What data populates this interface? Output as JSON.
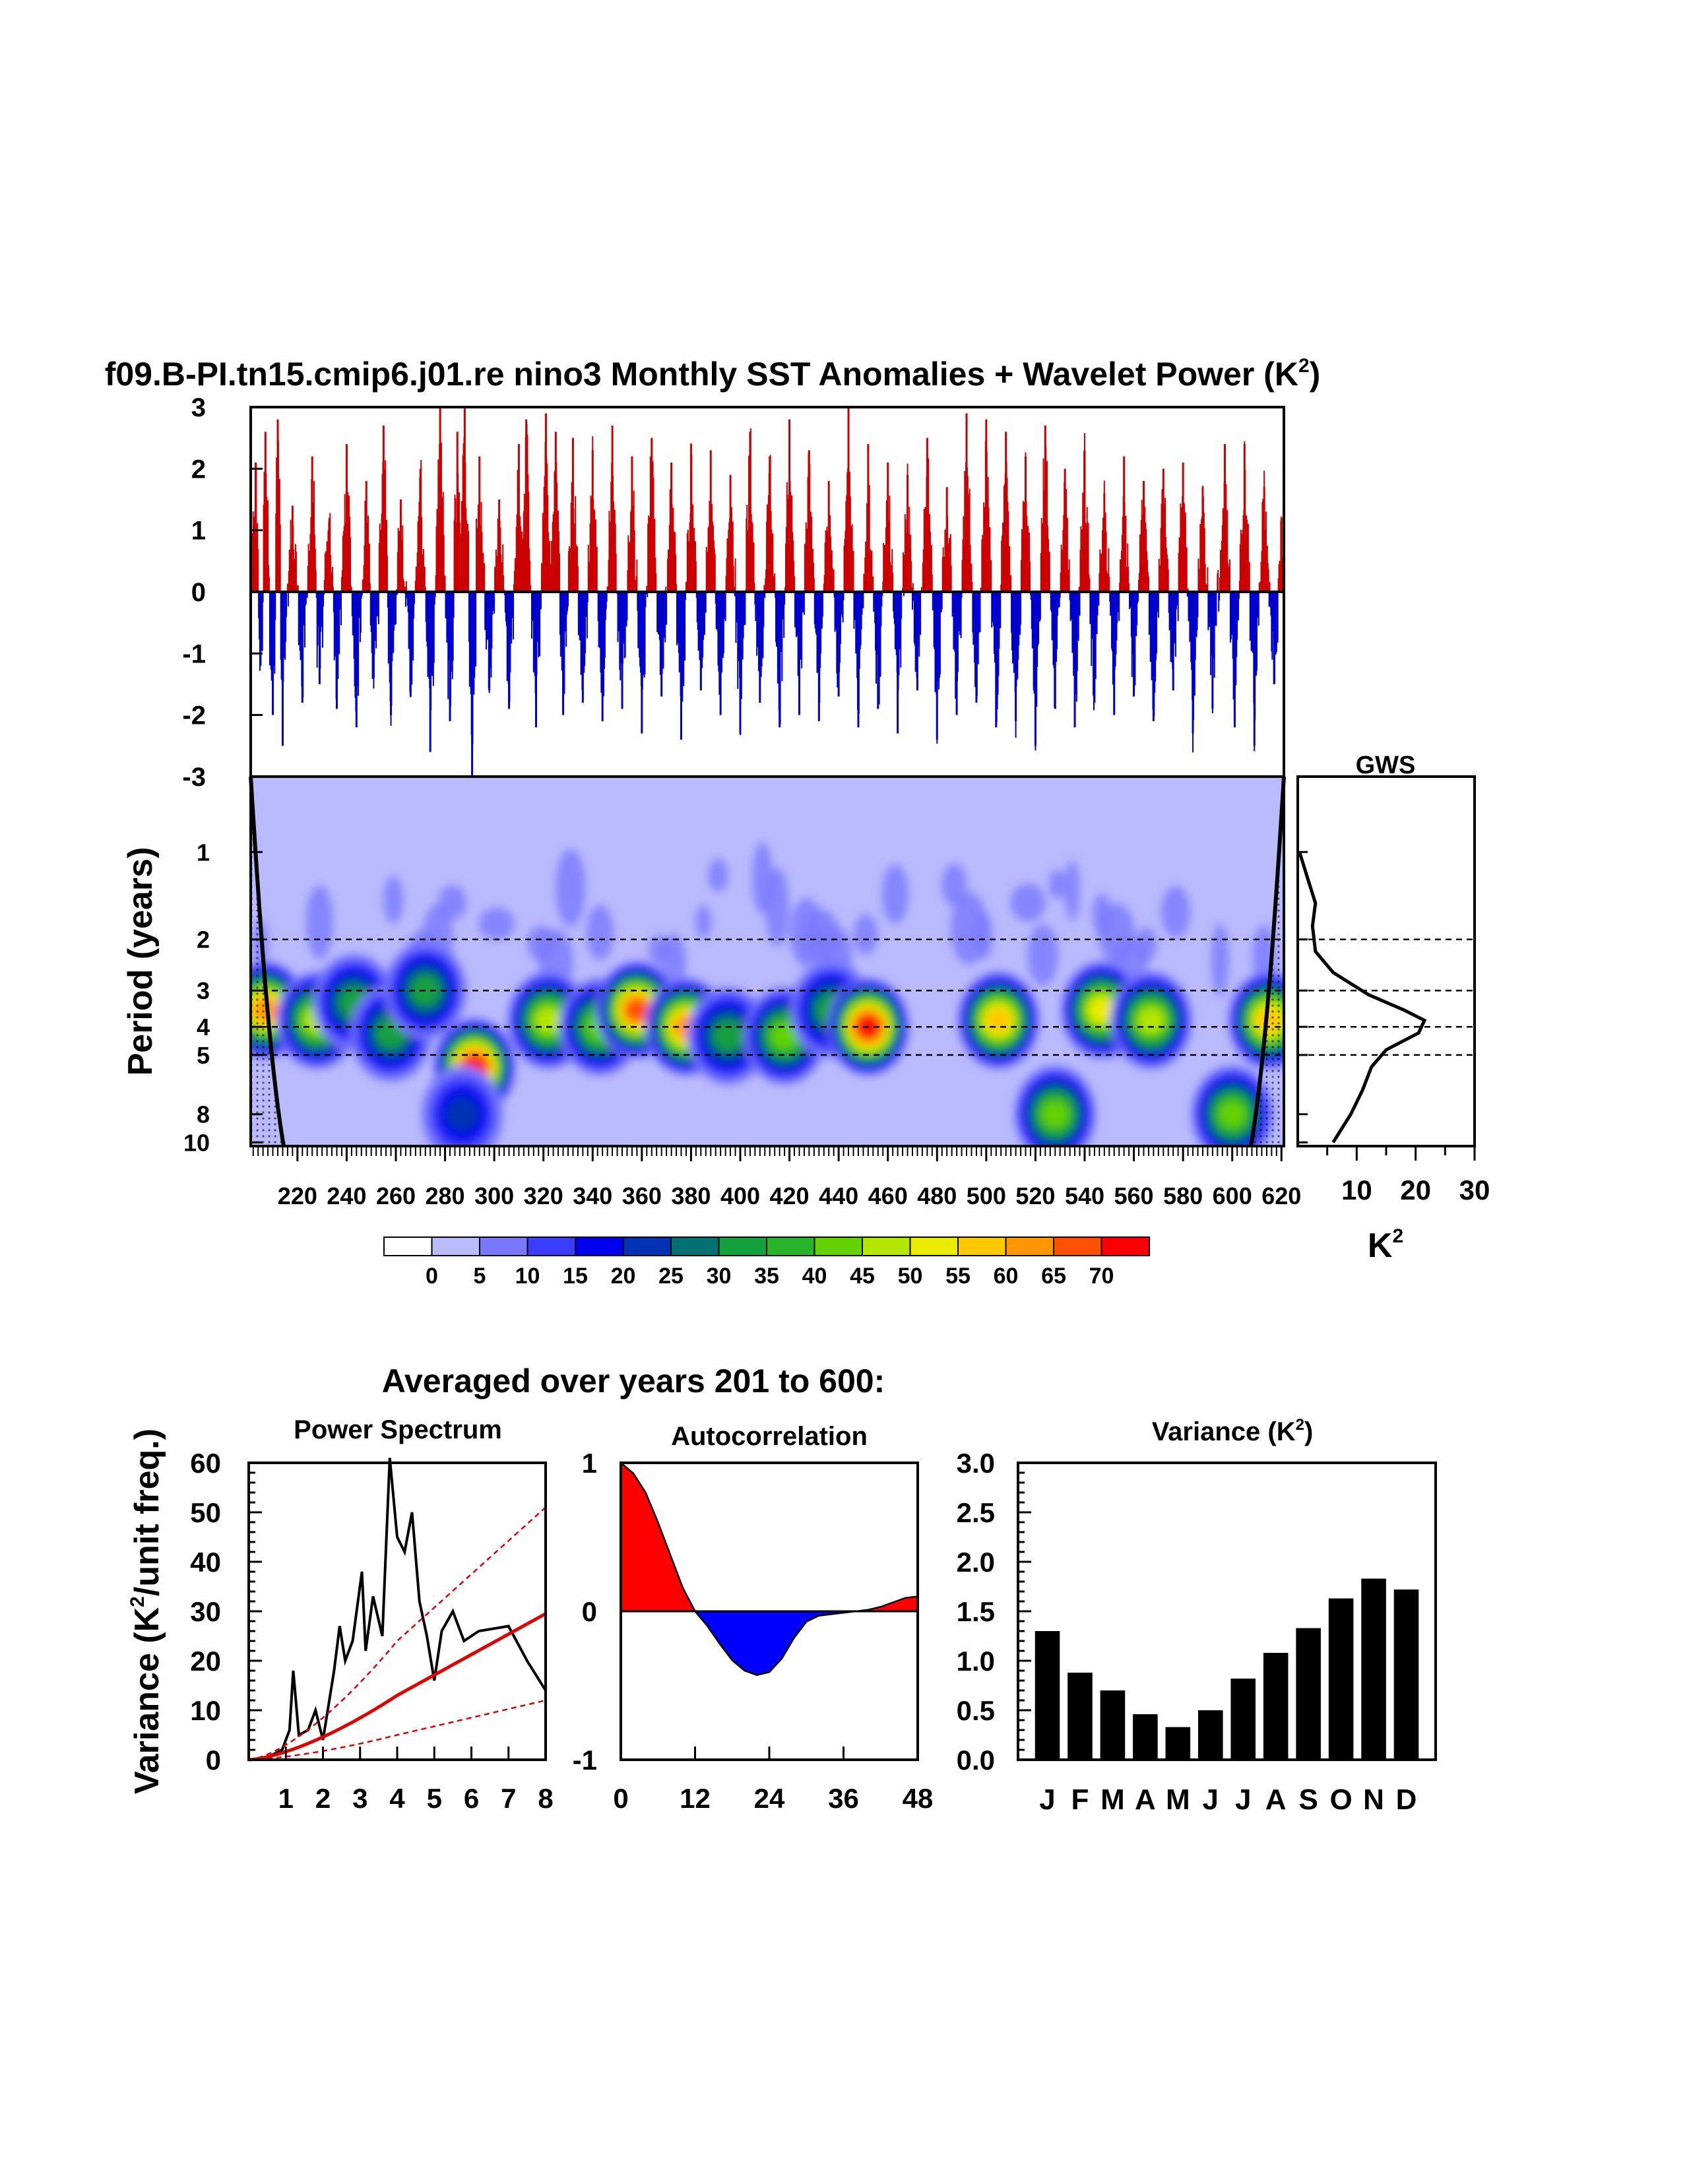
{
  "colors": {
    "positive": "#cc0000",
    "negative": "#0000cc",
    "background_power": "#babaff",
    "red_line": "#e00000",
    "bar": "#000000",
    "colorbar": [
      "#ffffff",
      "#babaff",
      "#7878ff",
      "#3c3cff",
      "#0000f0",
      "#0032b4",
      "#007070",
      "#14a03c",
      "#28b428",
      "#64d200",
      "#b4e600",
      "#ebeb00",
      "#ffc800",
      "#ff9600",
      "#ff5000",
      "#ff0000"
    ]
  },
  "chart_data": [
    {
      "id": "sst_anomalies",
      "type": "bar",
      "title": "f09.B-PI.tn15.cmip6.j01.re nino3 Monthly SST Anomalies + Wavelet Power (K",
      "title_sup": "2",
      "title_close": ")",
      "ylim": [
        -3,
        3
      ],
      "yticks": [
        "3",
        "2",
        "1",
        "0",
        "-1",
        "-2",
        "-3"
      ],
      "x_range_years": [
        201,
        621
      ],
      "note_series": "monthly anomalies, positive red, negative blue",
      "peaks": [
        [
          203,
          2.1
        ],
        [
          205,
          -1.2
        ],
        [
          207,
          2.6
        ],
        [
          210,
          -2.0
        ],
        [
          212,
          2.8
        ],
        [
          214,
          -2.5
        ],
        [
          218,
          1.4
        ],
        [
          222,
          -1.8
        ],
        [
          226,
          2.2
        ],
        [
          229,
          -1.5
        ],
        [
          233,
          1.2
        ],
        [
          236,
          -1.9
        ],
        [
          240,
          2.4
        ],
        [
          244,
          -2.2
        ],
        [
          248,
          1.8
        ],
        [
          251,
          -1.4
        ],
        [
          255,
          2.7
        ],
        [
          258,
          -2.0
        ],
        [
          262,
          1.5
        ],
        [
          266,
          -1.7
        ],
        [
          270,
          2.0
        ],
        [
          274,
          -2.6
        ],
        [
          278,
          3.0
        ],
        [
          282,
          -2.1
        ],
        [
          285,
          2.6
        ],
        [
          288,
          3.0
        ],
        [
          291,
          -3.0
        ],
        [
          294,
          2.2
        ],
        [
          298,
          -1.6
        ],
        [
          302,
          1.5
        ],
        [
          306,
          -1.9
        ],
        [
          310,
          2.4
        ],
        [
          313,
          2.8
        ],
        [
          317,
          -2.2
        ],
        [
          321,
          2.9
        ],
        [
          325,
          2.6
        ],
        [
          328,
          -2.0
        ],
        [
          332,
          2.5
        ],
        [
          336,
          -1.8
        ],
        [
          340,
          2.3
        ],
        [
          344,
          -2.1
        ],
        [
          348,
          2.7
        ],
        [
          352,
          -1.9
        ],
        [
          356,
          2.2
        ],
        [
          360,
          -2.3
        ],
        [
          364,
          2.5
        ],
        [
          368,
          -1.7
        ],
        [
          372,
          2.1
        ],
        [
          376,
          -2.4
        ],
        [
          380,
          2.4
        ],
        [
          384,
          -1.6
        ],
        [
          388,
          2.3
        ],
        [
          392,
          -2.0
        ],
        [
          396,
          1.9
        ],
        [
          400,
          -2.3
        ],
        [
          404,
          2.6
        ],
        [
          408,
          -1.8
        ],
        [
          412,
          2.2
        ],
        [
          416,
          -2.2
        ],
        [
          420,
          2.8
        ],
        [
          424,
          -2.0
        ],
        [
          428,
          2.3
        ],
        [
          432,
          -2.1
        ],
        [
          436,
          1.8
        ],
        [
          440,
          -1.7
        ],
        [
          444,
          3.0
        ],
        [
          448,
          -2.2
        ],
        [
          452,
          2.4
        ],
        [
          456,
          -1.9
        ],
        [
          460,
          2.1
        ],
        [
          464,
          -2.3
        ],
        [
          468,
          1.9
        ],
        [
          472,
          -1.6
        ],
        [
          476,
          2.5
        ],
        [
          480,
          -2.4
        ],
        [
          484,
          1.7
        ],
        [
          488,
          -2.0
        ],
        [
          492,
          2.9
        ],
        [
          496,
          -1.8
        ],
        [
          500,
          2.8
        ],
        [
          504,
          -2.2
        ],
        [
          508,
          2.6
        ],
        [
          512,
          -2.1
        ],
        [
          516,
          2.2
        ],
        [
          520,
          -2.5
        ],
        [
          524,
          2.7
        ],
        [
          528,
          -1.9
        ],
        [
          532,
          2.0
        ],
        [
          536,
          -2.2
        ],
        [
          540,
          2.3
        ],
        [
          544,
          -1.8
        ],
        [
          548,
          1.6
        ],
        [
          552,
          -2.0
        ],
        [
          556,
          2.2
        ],
        [
          560,
          -1.7
        ],
        [
          564,
          1.8
        ],
        [
          568,
          -2.1
        ],
        [
          572,
          2.0
        ],
        [
          576,
          -1.6
        ],
        [
          580,
          2.1
        ],
        [
          584,
          -2.3
        ],
        [
          588,
          1.7
        ],
        [
          592,
          -1.9
        ],
        [
          597,
          2.4
        ],
        [
          601,
          -2.2
        ],
        [
          605,
          2.4
        ],
        [
          609,
          -2.5
        ],
        [
          613,
          1.7
        ],
        [
          617,
          -1.5
        ],
        [
          620,
          1.2
        ]
      ]
    },
    {
      "id": "wavelet_power",
      "type": "heatmap",
      "ylabel": "Period (years)",
      "yticks": [
        "1",
        "2",
        "3",
        "4",
        "5",
        "8",
        "10"
      ],
      "xticks": [
        "220",
        "240",
        "260",
        "280",
        "300",
        "320",
        "340",
        "360",
        "380",
        "400",
        "420",
        "440",
        "460",
        "480",
        "500",
        "520",
        "540",
        "560",
        "580",
        "600",
        "620"
      ],
      "reference_periods": [
        2,
        3,
        4,
        5
      ],
      "colorbar_labels": [
        "0",
        "5",
        "10",
        "15",
        "20",
        "25",
        "30",
        "35",
        "40",
        "45",
        "50",
        "55",
        "60",
        "65",
        "70"
      ],
      "blobs": [
        {
          "year": 207,
          "period": 3.5,
          "power": 62
        },
        {
          "year": 228,
          "period": 3.8,
          "power": 45
        },
        {
          "year": 243,
          "period": 3.3,
          "power": 30
        },
        {
          "year": 258,
          "period": 4.2,
          "power": 28
        },
        {
          "year": 272,
          "period": 3.0,
          "power": 30
        },
        {
          "year": 292,
          "period": 5.5,
          "power": 70
        },
        {
          "year": 287,
          "period": 8.0,
          "power": 20
        },
        {
          "year": 322,
          "period": 3.8,
          "power": 45
        },
        {
          "year": 343,
          "period": 4.0,
          "power": 38
        },
        {
          "year": 358,
          "period": 3.5,
          "power": 65
        },
        {
          "year": 378,
          "period": 4.0,
          "power": 62
        },
        {
          "year": 395,
          "period": 4.3,
          "power": 30
        },
        {
          "year": 418,
          "period": 4.3,
          "power": 38
        },
        {
          "year": 437,
          "period": 3.5,
          "power": 32
        },
        {
          "year": 452,
          "period": 4.0,
          "power": 70
        },
        {
          "year": 505,
          "period": 3.8,
          "power": 55
        },
        {
          "year": 528,
          "period": 8.0,
          "power": 42
        },
        {
          "year": 547,
          "period": 3.5,
          "power": 52
        },
        {
          "year": 567,
          "period": 3.8,
          "power": 45
        },
        {
          "year": 600,
          "period": 8.0,
          "power": 38
        },
        {
          "year": 615,
          "period": 3.8,
          "power": 55
        }
      ]
    },
    {
      "id": "gws",
      "type": "line",
      "title": "GWS",
      "xlabel": "K",
      "xlabel_sup": "2",
      "xticks": [
        "10",
        "20",
        "30"
      ],
      "xlim": [
        0,
        30
      ],
      "points": [
        [
          0.3,
          1.0
        ],
        [
          1.5,
          1.2
        ],
        [
          3.0,
          1.5
        ],
        [
          2.5,
          1.8
        ],
        [
          3.0,
          2.2
        ],
        [
          6.0,
          2.6
        ],
        [
          12.0,
          3.1
        ],
        [
          18.0,
          3.5
        ],
        [
          21.5,
          3.8
        ],
        [
          20.5,
          4.2
        ],
        [
          15.0,
          4.8
        ],
        [
          12.5,
          5.5
        ],
        [
          11.0,
          6.6
        ],
        [
          9.0,
          8.0
        ],
        [
          6.0,
          10.0
        ]
      ]
    },
    {
      "id": "power_spectrum",
      "type": "line",
      "section_title": "Averaged over years 201 to 600:",
      "title": "Power Spectrum",
      "ylabel": "Variance (K",
      "ylabel_sup": "2",
      "ylabel_tail": "/unit freq.)",
      "xticks": [
        "1",
        "2",
        "3",
        "4",
        "5",
        "6",
        "7",
        "8"
      ],
      "yticks": [
        "0",
        "10",
        "20",
        "30",
        "40",
        "50",
        "60"
      ],
      "xlim": [
        0,
        8
      ],
      "ylim": [
        0,
        60
      ],
      "series": [
        {
          "values": [
            [
              0,
              0
            ],
            [
              0.5,
              0.5
            ],
            [
              0.9,
              2
            ],
            [
              1.1,
              6
            ],
            [
              1.2,
              18
            ],
            [
              1.35,
              5
            ],
            [
              1.6,
              6
            ],
            [
              1.8,
              10
            ],
            [
              2.0,
              4
            ],
            [
              2.3,
              18
            ],
            [
              2.45,
              27
            ],
            [
              2.6,
              20
            ],
            [
              2.8,
              24
            ],
            [
              3.05,
              38
            ],
            [
              3.15,
              22
            ],
            [
              3.35,
              33
            ],
            [
              3.6,
              25
            ],
            [
              3.8,
              64
            ],
            [
              4.0,
              45
            ],
            [
              4.2,
              42
            ],
            [
              4.4,
              50
            ],
            [
              4.6,
              32
            ],
            [
              4.8,
              25
            ],
            [
              5.0,
              16
            ],
            [
              5.2,
              26
            ],
            [
              5.5,
              30
            ],
            [
              5.8,
              24
            ],
            [
              6.2,
              26
            ],
            [
              7.0,
              27
            ],
            [
              7.5,
              20
            ],
            [
              8.0,
              14
            ]
          ]
        },
        {
          "values": [
            [
              0,
              0
            ],
            [
              4,
              13
            ],
            [
              8,
              29.5
            ]
          ]
        },
        {
          "values": [
            [
              0,
              0
            ],
            [
              4,
              24
            ],
            [
              8,
              51
            ]
          ]
        },
        {
          "values": [
            [
              0,
              0
            ],
            [
              4,
              5
            ],
            [
              8,
              12
            ]
          ]
        }
      ]
    },
    {
      "id": "autocorrelation",
      "type": "area",
      "title": "Autocorrelation",
      "xticks": [
        "0",
        "12",
        "24",
        "36",
        "48"
      ],
      "yticks": [
        "1",
        "0",
        "-1"
      ],
      "xlim": [
        0,
        48
      ],
      "ylim": [
        -1,
        1
      ],
      "values": [
        [
          0,
          1.0
        ],
        [
          2,
          0.93
        ],
        [
          4,
          0.8
        ],
        [
          6,
          0.6
        ],
        [
          8,
          0.38
        ],
        [
          10,
          0.16
        ],
        [
          12,
          0.0
        ],
        [
          14,
          -0.1
        ],
        [
          16,
          -0.22
        ],
        [
          18,
          -0.33
        ],
        [
          20,
          -0.4
        ],
        [
          22,
          -0.43
        ],
        [
          24,
          -0.41
        ],
        [
          26,
          -0.32
        ],
        [
          28,
          -0.18
        ],
        [
          30,
          -0.07
        ],
        [
          32,
          -0.03
        ],
        [
          34,
          -0.02
        ],
        [
          36,
          -0.01
        ],
        [
          38,
          0.0
        ],
        [
          40,
          0.01
        ],
        [
          42,
          0.03
        ],
        [
          44,
          0.06
        ],
        [
          46,
          0.09
        ],
        [
          48,
          0.1
        ]
      ]
    },
    {
      "id": "monthly_variance",
      "type": "bar",
      "title": "Variance (K",
      "title_sup": "2",
      "title_close": ")",
      "categories": [
        "J",
        "F",
        "M",
        "A",
        "M",
        "J",
        "J",
        "A",
        "S",
        "O",
        "N",
        "D"
      ],
      "values": [
        1.3,
        0.88,
        0.7,
        0.46,
        0.33,
        0.5,
        0.82,
        1.08,
        1.33,
        1.63,
        1.83,
        1.72
      ],
      "yticks": [
        "3.0",
        "2.5",
        "2.0",
        "1.5",
        "1.0",
        "0.5",
        "0.0"
      ],
      "ylim": [
        0,
        3
      ]
    }
  ]
}
